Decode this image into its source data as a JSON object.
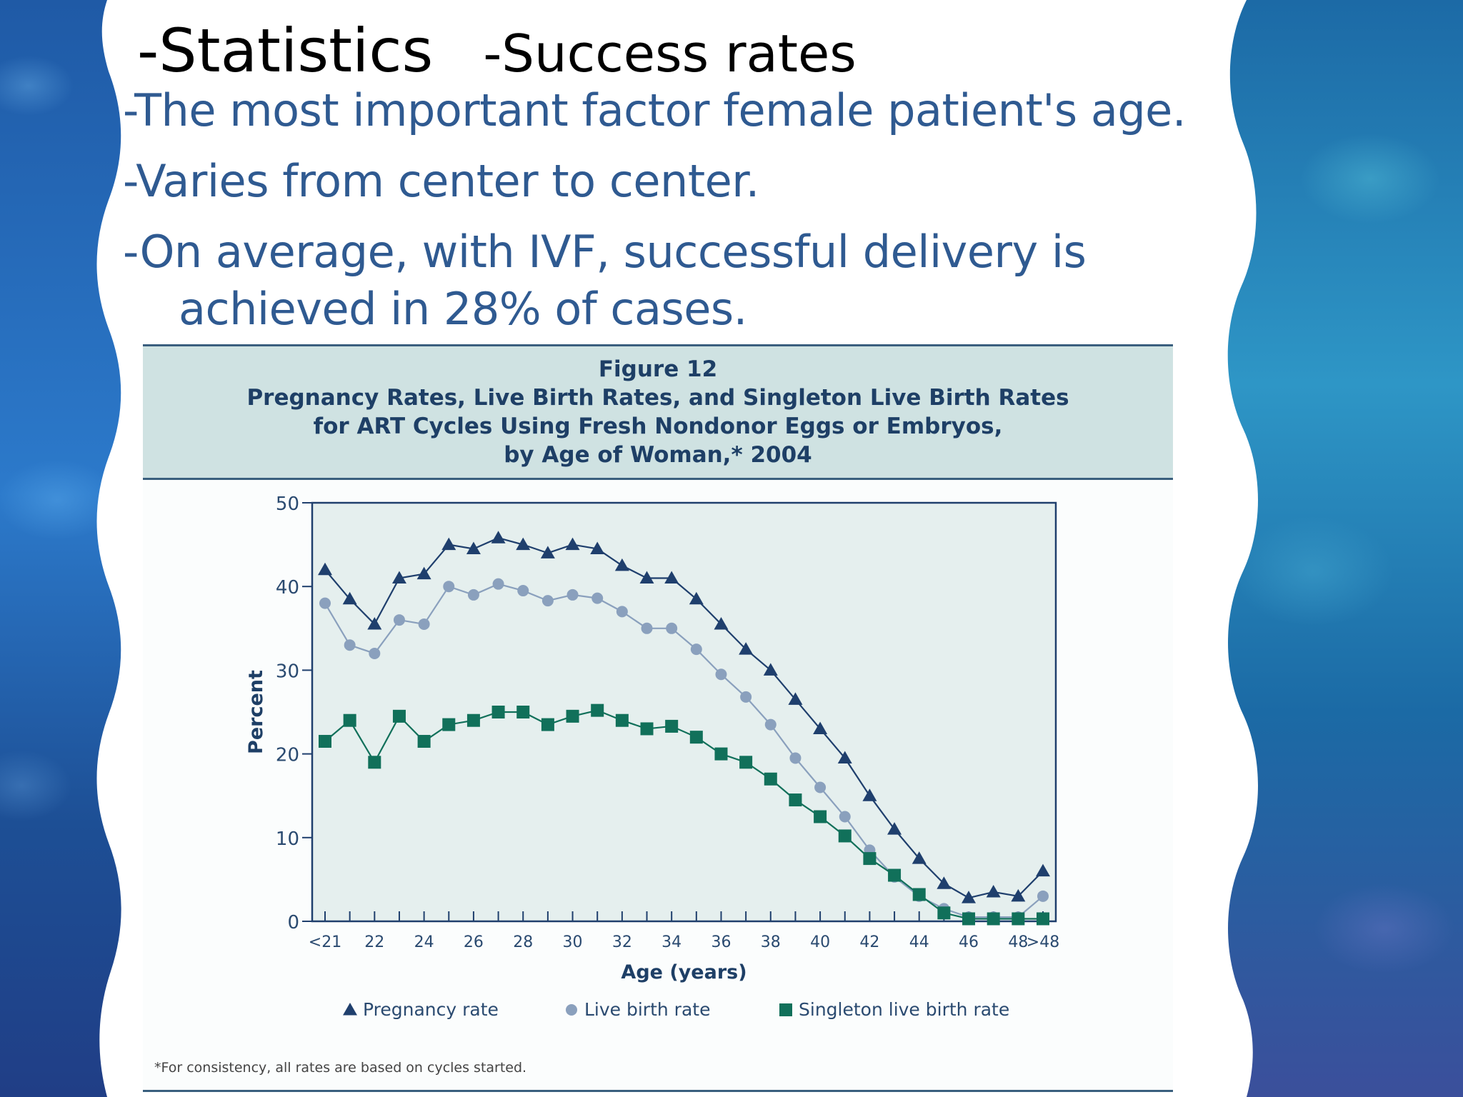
{
  "slide": {
    "title": "-Statistics",
    "subtitle": "-Success rates",
    "bullets": [
      "-The most important factor female patient's age.",
      "-Varies from center to center.",
      "-On average, with IVF, successful delivery is",
      "achieved in 28% of cases."
    ]
  },
  "figure": {
    "number": "Figure 12",
    "title_lines": [
      "Pregnancy Rates, Live Birth Rates, and Singleton Live Birth Rates",
      "for ART Cycles Using Fresh Nondonor Eggs or Embryos,",
      "by Age of Woman,* 2004"
    ],
    "footnote": "*For consistency, all rates are based on cycles started."
  },
  "colors": {
    "pregnancy": "#1f3f6d",
    "live_birth": "#8aa0bd",
    "singleton": "#11705a",
    "plot_bg": "#e5efee"
  },
  "chart_data": {
    "type": "line",
    "xlabel": "Age (years)",
    "ylabel": "Percent",
    "ylim": [
      0,
      50
    ],
    "yticks": [
      0,
      10,
      20,
      30,
      40,
      50
    ],
    "ytick_labels": [
      "0",
      "10",
      "20",
      "30",
      "40",
      "50"
    ],
    "x": [
      21,
      22,
      23,
      24,
      25,
      26,
      27,
      28,
      29,
      30,
      31,
      32,
      33,
      34,
      35,
      36,
      37,
      38,
      39,
      40,
      41,
      42,
      43,
      44,
      45,
      46,
      47,
      48,
      49,
      50
    ],
    "xtick_values": [
      21,
      23,
      25,
      27,
      29,
      31,
      33,
      35,
      37,
      39,
      41,
      43,
      45,
      47,
      49,
      50
    ],
    "xtick_labels": [
      "<21",
      "22",
      "24",
      "26",
      "28",
      "30",
      "32",
      "34",
      "36",
      "38",
      "40",
      "42",
      "44",
      "46",
      "48",
      ">48"
    ],
    "grid": false,
    "legend_position": "bottom",
    "series": [
      {
        "name": "Pregnancy rate",
        "marker": "triangle",
        "values": [
          42,
          38.5,
          35.5,
          41,
          41.5,
          45,
          44.5,
          45.8,
          45,
          44,
          45,
          44.5,
          42.5,
          41,
          41,
          38.5,
          35.5,
          32.5,
          30,
          26.5,
          23,
          19.5,
          15,
          11,
          7.5,
          4.5,
          2.8,
          3.5,
          3,
          6
        ]
      },
      {
        "name": "Live birth rate",
        "marker": "circle",
        "values": [
          38,
          33,
          32,
          36,
          35.5,
          40,
          39,
          40.3,
          39.5,
          38.3,
          39,
          38.6,
          37,
          35,
          35,
          32.5,
          29.5,
          26.8,
          23.5,
          19.5,
          16,
          12.5,
          8.5,
          5.3,
          3,
          1.5,
          0.5,
          0.5,
          0.5,
          3
        ]
      },
      {
        "name": "Singleton live birth rate",
        "marker": "square",
        "values": [
          21.5,
          24,
          19,
          24.5,
          21.5,
          23.5,
          24,
          25,
          25,
          23.5,
          24.5,
          25.2,
          24,
          23,
          23.3,
          22,
          20,
          19,
          17,
          14.5,
          12.5,
          10.2,
          7.5,
          5.5,
          3.2,
          1,
          0.3,
          0.3,
          0.3,
          0.3
        ]
      }
    ]
  }
}
